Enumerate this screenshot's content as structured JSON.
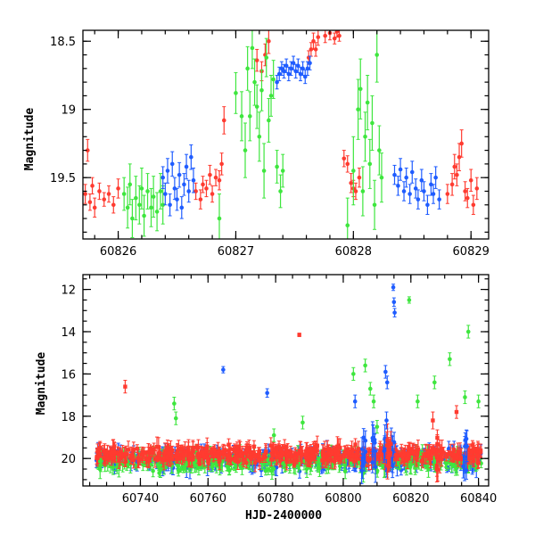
{
  "colors": {
    "red": "#ff3b30",
    "green": "#3ee63e",
    "blue": "#1f5cff",
    "model": "#000000"
  },
  "chart_data": [
    {
      "type": "scatter",
      "title": "",
      "xlabel": "",
      "ylabel": "Magnitude",
      "xlim": [
        60825.7,
        60829.15
      ],
      "ylim": [
        19.95,
        18.42
      ],
      "y_inverted": true,
      "xticks": [
        60826,
        60827,
        60828,
        60829
      ],
      "yticks": [
        18.5,
        19,
        19.5
      ],
      "ytick_labels": [
        "18.5",
        "19",
        "19.5"
      ],
      "model_curve": {
        "color": "black",
        "x": [
          60825.7,
          60826.0,
          60826.3,
          60826.6,
          60826.9,
          60827.1,
          60827.25,
          60827.35,
          60827.45,
          60827.55,
          60827.65,
          60827.75,
          60827.9,
          60828.1,
          60828.3,
          60828.6,
          60828.9,
          60829.15
        ],
        "y": [
          19.7,
          19.64,
          19.56,
          19.42,
          19.2,
          18.98,
          18.8,
          18.69,
          18.65,
          18.66,
          18.71,
          18.8,
          18.99,
          19.22,
          19.4,
          19.55,
          19.63,
          19.68
        ]
      },
      "series": [
        {
          "color": "red",
          "points": [
            [
              60825.72,
              19.62,
              0.07
            ],
            [
              60825.74,
              19.3,
              0.08
            ],
            [
              60825.76,
              19.68,
              0.06
            ],
            [
              60825.78,
              19.56,
              0.06
            ],
            [
              60825.8,
              19.72,
              0.07
            ],
            [
              60825.84,
              19.6,
              0.06
            ],
            [
              60825.88,
              19.66,
              0.05
            ],
            [
              60825.92,
              19.62,
              0.06
            ],
            [
              60825.96,
              19.7,
              0.06
            ],
            [
              60826.0,
              19.58,
              0.07
            ],
            [
              60826.66,
              19.6,
              0.06
            ],
            [
              60826.7,
              19.66,
              0.07
            ],
            [
              60826.72,
              19.55,
              0.06
            ],
            [
              60826.75,
              19.58,
              0.06
            ],
            [
              60826.78,
              19.48,
              0.07
            ],
            [
              60826.8,
              19.62,
              0.06
            ],
            [
              60826.83,
              19.5,
              0.06
            ],
            [
              60826.86,
              19.52,
              0.07
            ],
            [
              60826.88,
              19.4,
              0.08
            ],
            [
              60826.9,
              19.08,
              0.1
            ],
            [
              60827.18,
              18.64,
              0.08
            ],
            [
              60827.22,
              18.72,
              0.07
            ],
            [
              60827.25,
              18.6,
              0.08
            ],
            [
              60827.28,
              18.5,
              0.09
            ],
            [
              60827.62,
              18.62,
              0.05
            ],
            [
              60827.64,
              18.56,
              0.05
            ],
            [
              60827.66,
              18.5,
              0.06
            ],
            [
              60827.68,
              18.56,
              0.05
            ],
            [
              60827.7,
              18.47,
              0.06
            ],
            [
              60827.76,
              18.46,
              0.05
            ],
            [
              60827.8,
              18.44,
              0.05
            ],
            [
              60827.84,
              18.48,
              0.04
            ],
            [
              60827.86,
              18.43,
              0.04
            ],
            [
              60827.88,
              18.46,
              0.04
            ],
            [
              60827.92,
              19.36,
              0.06
            ],
            [
              60827.95,
              19.4,
              0.06
            ],
            [
              60827.98,
              19.54,
              0.07
            ],
            [
              60828.0,
              19.58,
              0.06
            ],
            [
              60828.02,
              19.6,
              0.06
            ],
            [
              60828.05,
              19.5,
              0.07
            ],
            [
              60828.8,
              19.62,
              0.07
            ],
            [
              60828.84,
              19.55,
              0.08
            ],
            [
              60828.86,
              19.42,
              0.09
            ],
            [
              60828.88,
              19.48,
              0.08
            ],
            [
              60828.9,
              19.35,
              0.1
            ],
            [
              60828.92,
              19.25,
              0.1
            ],
            [
              60828.95,
              19.6,
              0.07
            ],
            [
              60828.97,
              19.65,
              0.07
            ],
            [
              60829.0,
              19.52,
              0.08
            ],
            [
              60829.02,
              19.7,
              0.07
            ],
            [
              60829.05,
              19.58,
              0.08
            ]
          ]
        },
        {
          "color": "green",
          "points": [
            [
              60826.05,
              19.62,
              0.12
            ],
            [
              60826.08,
              19.72,
              0.15
            ],
            [
              60826.1,
              19.55,
              0.15
            ],
            [
              60826.12,
              19.8,
              0.14
            ],
            [
              60826.15,
              19.65,
              0.16
            ],
            [
              60826.18,
              19.7,
              0.14
            ],
            [
              60826.2,
              19.58,
              0.15
            ],
            [
              60826.22,
              19.78,
              0.15
            ],
            [
              60826.25,
              19.6,
              0.13
            ],
            [
              60826.28,
              19.72,
              0.14
            ],
            [
              60826.3,
              19.64,
              0.15
            ],
            [
              60826.33,
              19.75,
              0.14
            ],
            [
              60826.36,
              19.6,
              0.13
            ],
            [
              60826.38,
              19.7,
              0.14
            ],
            [
              60826.86,
              19.8,
              0.18
            ],
            [
              60827.0,
              18.88,
              0.15
            ],
            [
              60827.05,
              19.05,
              0.18
            ],
            [
              60827.08,
              19.3,
              0.2
            ],
            [
              60827.1,
              18.7,
              0.16
            ],
            [
              60827.12,
              19.05,
              0.18
            ],
            [
              60827.14,
              18.55,
              0.15
            ],
            [
              60827.16,
              18.8,
              0.17
            ],
            [
              60827.18,
              18.98,
              0.16
            ],
            [
              60827.2,
              19.2,
              0.18
            ],
            [
              60827.22,
              18.86,
              0.15
            ],
            [
              60827.24,
              19.45,
              0.2
            ],
            [
              60827.26,
              18.62,
              0.14
            ],
            [
              60827.28,
              19.08,
              0.16
            ],
            [
              60827.3,
              18.9,
              0.15
            ],
            [
              60827.32,
              18.78,
              0.14
            ],
            [
              60827.35,
              19.42,
              0.12
            ],
            [
              60827.38,
              19.6,
              0.12
            ],
            [
              60827.4,
              19.45,
              0.12
            ],
            [
              60827.95,
              19.85,
              0.2
            ],
            [
              60828.0,
              19.45,
              0.25
            ],
            [
              60828.04,
              19.0,
              0.22
            ],
            [
              60828.06,
              18.85,
              0.22
            ],
            [
              60828.08,
              19.6,
              0.18
            ],
            [
              60828.1,
              19.2,
              0.18
            ],
            [
              60828.12,
              18.95,
              0.2
            ],
            [
              60828.14,
              19.4,
              0.18
            ],
            [
              60828.16,
              19.1,
              0.2
            ],
            [
              60828.18,
              19.7,
              0.18
            ],
            [
              60828.2,
              18.6,
              0.2
            ],
            [
              60828.22,
              19.3,
              0.18
            ],
            [
              60828.24,
              19.5,
              0.18
            ]
          ]
        },
        {
          "color": "blue",
          "points": [
            [
              60826.38,
              19.5,
              0.08
            ],
            [
              60826.4,
              19.62,
              0.08
            ],
            [
              60826.42,
              19.45,
              0.09
            ],
            [
              60826.44,
              19.7,
              0.08
            ],
            [
              60826.46,
              19.4,
              0.09
            ],
            [
              60826.48,
              19.58,
              0.08
            ],
            [
              60826.5,
              19.66,
              0.08
            ],
            [
              60826.52,
              19.48,
              0.09
            ],
            [
              60826.54,
              19.72,
              0.08
            ],
            [
              60826.56,
              19.55,
              0.08
            ],
            [
              60826.58,
              19.42,
              0.09
            ],
            [
              60826.6,
              19.6,
              0.08
            ],
            [
              60826.62,
              19.35,
              0.09
            ],
            [
              60826.64,
              19.52,
              0.09
            ],
            [
              60827.35,
              18.8,
              0.05
            ],
            [
              60827.37,
              18.74,
              0.05
            ],
            [
              60827.39,
              18.7,
              0.05
            ],
            [
              60827.41,
              18.72,
              0.05
            ],
            [
              60827.43,
              18.68,
              0.05
            ],
            [
              60827.45,
              18.74,
              0.05
            ],
            [
              60827.47,
              18.7,
              0.05
            ],
            [
              60827.49,
              18.66,
              0.05
            ],
            [
              60827.51,
              18.72,
              0.05
            ],
            [
              60827.53,
              18.68,
              0.05
            ],
            [
              60827.55,
              18.74,
              0.05
            ],
            [
              60827.57,
              18.7,
              0.05
            ],
            [
              60827.59,
              18.76,
              0.05
            ],
            [
              60827.61,
              18.7,
              0.05
            ],
            [
              60827.63,
              18.66,
              0.05
            ],
            [
              60828.35,
              19.48,
              0.07
            ],
            [
              60828.38,
              19.56,
              0.07
            ],
            [
              60828.4,
              19.44,
              0.08
            ],
            [
              60828.43,
              19.6,
              0.07
            ],
            [
              60828.45,
              19.5,
              0.07
            ],
            [
              60828.48,
              19.62,
              0.07
            ],
            [
              60828.5,
              19.46,
              0.08
            ],
            [
              60828.53,
              19.58,
              0.07
            ],
            [
              60828.55,
              19.66,
              0.07
            ],
            [
              60828.58,
              19.52,
              0.08
            ],
            [
              60828.6,
              19.6,
              0.07
            ],
            [
              60828.63,
              19.7,
              0.07
            ],
            [
              60828.66,
              19.55,
              0.08
            ],
            [
              60828.68,
              19.62,
              0.07
            ],
            [
              60828.7,
              19.5,
              0.08
            ],
            [
              60828.73,
              19.66,
              0.07
            ]
          ]
        }
      ]
    },
    {
      "type": "scatter",
      "title": "",
      "xlabel": "HJD-2400000",
      "ylabel": "Magnitude",
      "xlim": [
        60723,
        60843
      ],
      "ylim": [
        21.3,
        11.3
      ],
      "y_inverted": true,
      "xticks": [
        60740,
        60760,
        60780,
        60800,
        60820,
        60840
      ],
      "yticks": [
        12,
        14,
        16,
        18,
        20
      ],
      "ytick_labels": [
        "12",
        "14",
        "16",
        "18",
        "20"
      ],
      "baseline": {
        "x_start": 60727,
        "x_end": 60841,
        "mean_mag": 19.8,
        "scatter": 0.35
      },
      "outliers": [
        {
          "color": "red",
          "x": 60735.5,
          "y": 16.6,
          "err": 0.3
        },
        {
          "color": "red",
          "x": 60787.0,
          "y": 14.15,
          "err": 0.08
        },
        {
          "color": "red",
          "x": 60826.5,
          "y": 18.2,
          "err": 0.4
        },
        {
          "color": "red",
          "x": 60833.5,
          "y": 17.8,
          "err": 0.3
        },
        {
          "color": "blue",
          "x": 60764.5,
          "y": 15.8,
          "err": 0.15
        },
        {
          "color": "blue",
          "x": 60777.5,
          "y": 16.9,
          "err": 0.2
        },
        {
          "color": "blue",
          "x": 60803.5,
          "y": 17.3,
          "err": 0.3
        },
        {
          "color": "blue",
          "x": 60812.5,
          "y": 15.9,
          "err": 0.3
        },
        {
          "color": "blue",
          "x": 60813.0,
          "y": 16.4,
          "err": 0.3
        },
        {
          "color": "blue",
          "x": 60814.8,
          "y": 11.9,
          "err": 0.15
        },
        {
          "color": "blue",
          "x": 60815.0,
          "y": 12.6,
          "err": 0.2
        },
        {
          "color": "blue",
          "x": 60815.2,
          "y": 13.1,
          "err": 0.2
        },
        {
          "color": "blue",
          "x": 60812.8,
          "y": 18.2,
          "err": 0.4
        },
        {
          "color": "green",
          "x": 60750.0,
          "y": 17.4,
          "err": 0.3
        },
        {
          "color": "green",
          "x": 60750.5,
          "y": 18.1,
          "err": 0.3
        },
        {
          "color": "green",
          "x": 60779.5,
          "y": 18.9,
          "err": 0.3
        },
        {
          "color": "green",
          "x": 60788.0,
          "y": 18.3,
          "err": 0.3
        },
        {
          "color": "green",
          "x": 60803.0,
          "y": 16.0,
          "err": 0.3
        },
        {
          "color": "green",
          "x": 60806.5,
          "y": 15.6,
          "err": 0.3
        },
        {
          "color": "green",
          "x": 60808.0,
          "y": 16.7,
          "err": 0.3
        },
        {
          "color": "green",
          "x": 60809.0,
          "y": 17.3,
          "err": 0.3
        },
        {
          "color": "green",
          "x": 60810.0,
          "y": 18.5,
          "err": 0.3
        },
        {
          "color": "green",
          "x": 60819.5,
          "y": 12.5,
          "err": 0.15
        },
        {
          "color": "green",
          "x": 60822.0,
          "y": 17.3,
          "err": 0.3
        },
        {
          "color": "green",
          "x": 60827.0,
          "y": 16.4,
          "err": 0.3
        },
        {
          "color": "green",
          "x": 60831.5,
          "y": 15.3,
          "err": 0.3
        },
        {
          "color": "green",
          "x": 60836.0,
          "y": 17.1,
          "err": 0.3
        },
        {
          "color": "green",
          "x": 60837.0,
          "y": 14.0,
          "err": 0.3
        },
        {
          "color": "green",
          "x": 60840.0,
          "y": 17.3,
          "err": 0.3
        }
      ]
    }
  ]
}
